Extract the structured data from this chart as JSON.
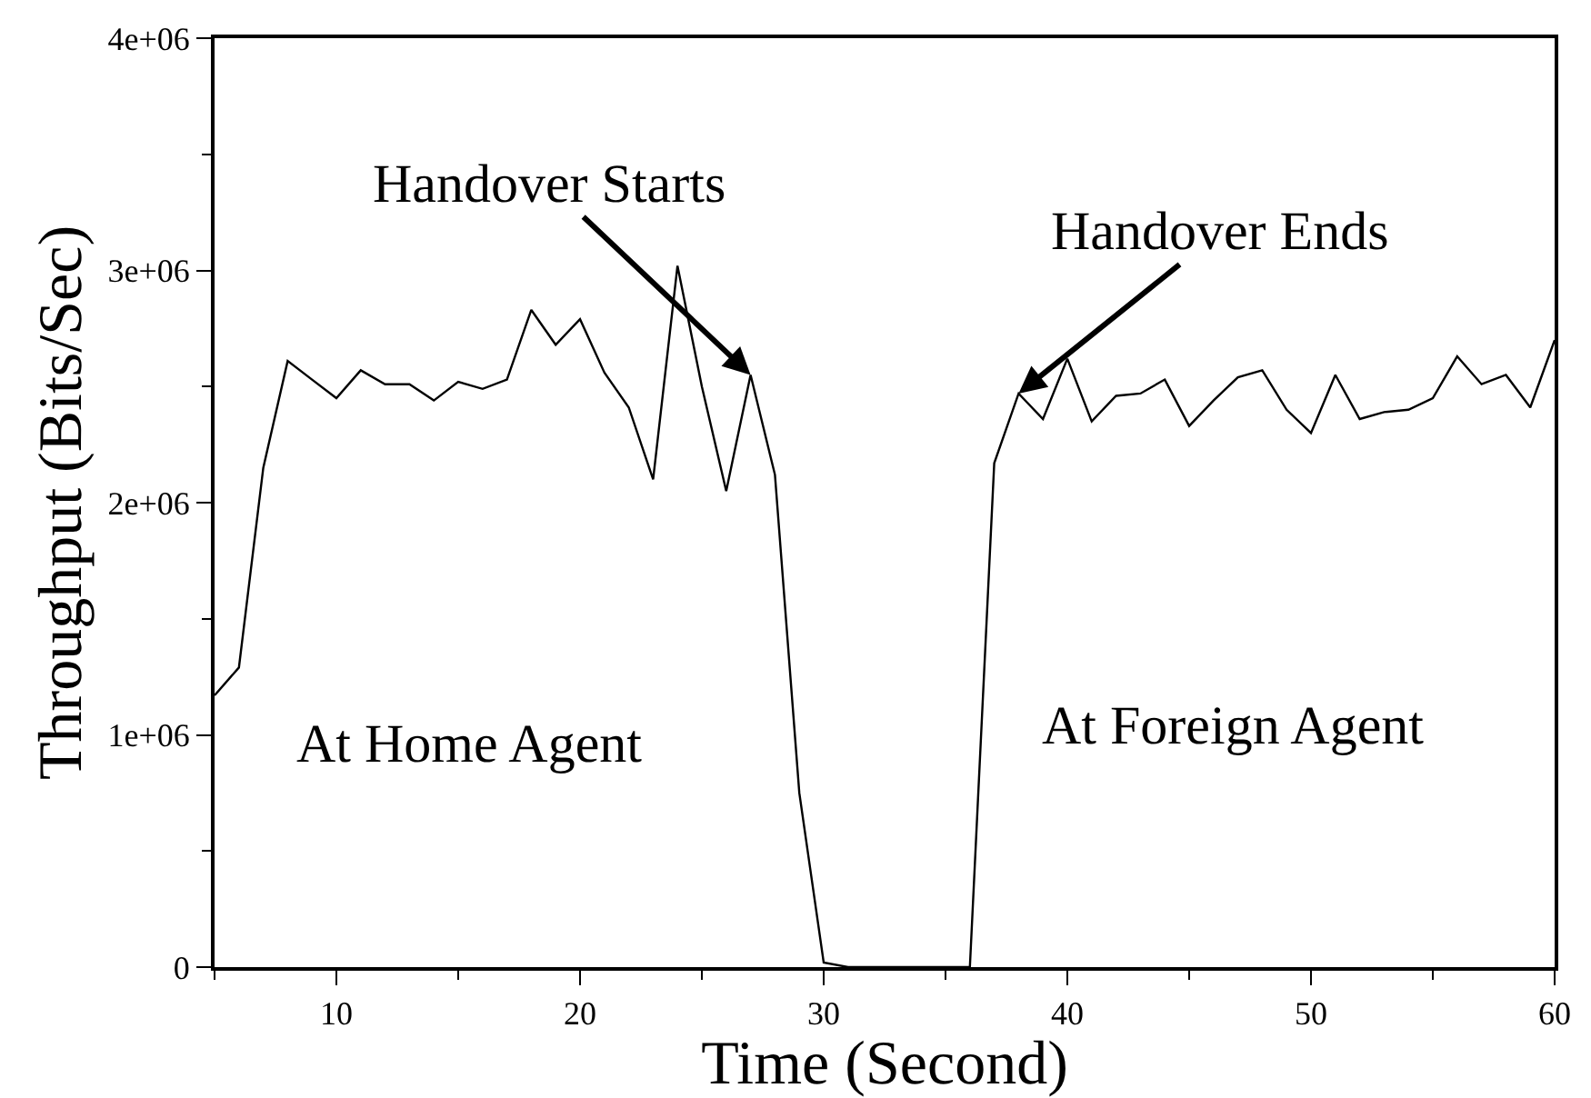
{
  "chart_data": {
    "type": "line",
    "xlabel": "Time (Second)",
    "ylabel": "Throughput (Bits/Sec)",
    "x": [
      5,
      6,
      7,
      8,
      9,
      10,
      11,
      12,
      13,
      14,
      15,
      16,
      17,
      18,
      19,
      20,
      21,
      22,
      23,
      24,
      25,
      26,
      27,
      28,
      29,
      30,
      31,
      32,
      33,
      34,
      35,
      36,
      37,
      38,
      39,
      40,
      41,
      42,
      43,
      44,
      45,
      46,
      47,
      48,
      49,
      50,
      51,
      52,
      53,
      54,
      55,
      56,
      57,
      58,
      59,
      60
    ],
    "series": [
      {
        "color": "#000000",
        "values": [
          1170000,
          1290000,
          2150000,
          2610000,
          2530000,
          2450000,
          2570000,
          2510000,
          2510000,
          2440000,
          2520000,
          2490000,
          2530000,
          2830000,
          2680000,
          2790000,
          2560000,
          2410000,
          2100000,
          3020000,
          2500000,
          2050000,
          2550000,
          2120000,
          750000,
          20000,
          0,
          0,
          0,
          0,
          0,
          0,
          2170000,
          2470000,
          2360000,
          2620000,
          2350000,
          2460000,
          2470000,
          2530000,
          2330000,
          2440000,
          2540000,
          2570000,
          2400000,
          2300000,
          2550000,
          2360000,
          2390000,
          2400000,
          2450000,
          2630000,
          2510000,
          2550000,
          2410000,
          2700000
        ]
      }
    ],
    "xlim": [
      5,
      60
    ],
    "xticks": [
      10,
      20,
      30,
      40,
      50,
      60
    ],
    "ylim": [
      0,
      4000000
    ],
    "yticks": [
      0,
      {
        "value": 1000000,
        "label": "1e+06"
      },
      {
        "value": 2000000,
        "label": "2e+06"
      },
      {
        "value": 3000000,
        "label": "3e+06"
      },
      {
        "value": 4000000,
        "label": "4e+06"
      }
    ],
    "marker": "none",
    "line_style": "solid",
    "annotations": [
      {
        "text": "Handover Starts",
        "x": 27,
        "y": 2550000
      },
      {
        "text": "Handover Ends",
        "x": 38,
        "y": 2470000
      },
      "At Home Agent",
      "At Foreign Agent"
    ]
  }
}
